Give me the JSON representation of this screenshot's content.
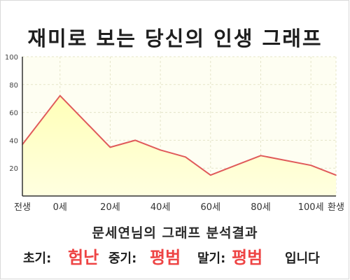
{
  "page": {
    "title": "재미로 보는 당신의 인생 그래프"
  },
  "analysis": {
    "title": "문세연님의 그래프 분석결과",
    "early_label": "초기:",
    "early_value": "험난",
    "middle_label": "중기:",
    "middle_value": "평범",
    "late_label": "말기:",
    "late_value": "평범",
    "suffix": "입니다"
  },
  "colors": {
    "line": "#e05a5a",
    "fill_top": "#ffffb8",
    "fill_bottom": "#ffffe0",
    "plot_bg": "#fefef2",
    "grid": "#e4e4c8",
    "result": "#ee4444"
  },
  "chart_data": {
    "type": "area",
    "title": "재미로 보는 당신의 인생 그래프",
    "xlabel": "",
    "ylabel": "",
    "x_categories": [
      "전생",
      "0세",
      "20세",
      "40세",
      "60세",
      "80세",
      "100세",
      "환생"
    ],
    "ylim": [
      0,
      100
    ],
    "y_ticks": [
      20,
      40,
      60,
      80,
      100
    ],
    "grid": true,
    "series": [
      {
        "points": [
          {
            "x": "전생",
            "y": 37
          },
          {
            "x": "0세",
            "y": 72
          },
          {
            "x": "20세",
            "y": 35
          },
          {
            "x": "30세",
            "y": 40
          },
          {
            "x": "40세",
            "y": 33
          },
          {
            "x": "50세",
            "y": 28
          },
          {
            "x": "60세",
            "y": 15
          },
          {
            "x": "70세",
            "y": 22
          },
          {
            "x": "80세",
            "y": 29
          },
          {
            "x": "100세",
            "y": 22
          },
          {
            "x": "환생",
            "y": 15
          }
        ]
      }
    ]
  }
}
